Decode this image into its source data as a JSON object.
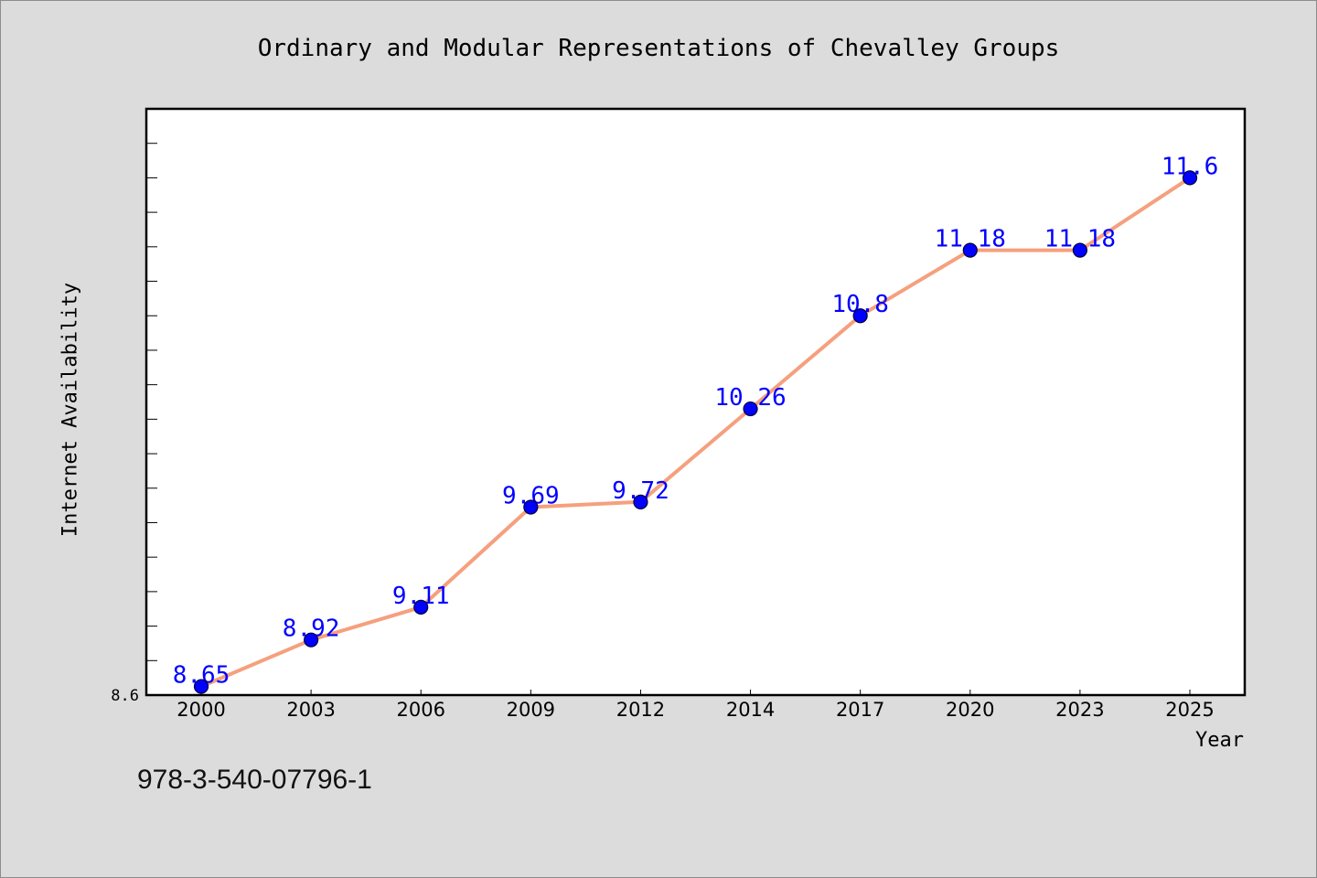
{
  "chart_data": {
    "type": "line",
    "title": "Ordinary and Modular Representations of Chevalley Groups",
    "xlabel": "Year",
    "ylabel": "Internet Availability",
    "categories": [
      "2000",
      "2003",
      "2006",
      "2009",
      "2012",
      "2014",
      "2017",
      "2020",
      "2023",
      "2025"
    ],
    "values": [
      8.65,
      8.92,
      9.11,
      9.69,
      9.72,
      10.26,
      10.8,
      11.18,
      11.18,
      11.6
    ],
    "ylim": [
      8.6,
      12.0
    ],
    "yticks": [
      8.6
    ],
    "y_minor_tick_step": 0.2,
    "data_labels": true,
    "grid": false
  },
  "colors": {
    "background": "#dcdcdc",
    "plot_background": "#ffffff",
    "line": "#f5a07e",
    "marker": "#0000ff",
    "marker_edge": "#00003a",
    "data_label": "#0000ff"
  },
  "footer": {
    "text": "978-3-540-07796-1"
  }
}
